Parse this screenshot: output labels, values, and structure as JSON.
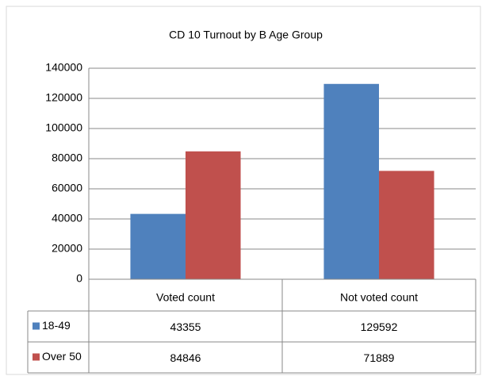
{
  "chart_data": {
    "type": "bar",
    "title": "CD 10 Turnout by B Age Group",
    "categories": [
      "Voted count",
      "Not voted count"
    ],
    "series": [
      {
        "name": "18-49",
        "color": "#4f81bd",
        "values": [
          43355,
          129592
        ]
      },
      {
        "name": "Over 50",
        "color": "#c0504d",
        "values": [
          84846,
          71889
        ]
      }
    ],
    "ylim": [
      0,
      140000
    ],
    "yticks": [
      0,
      20000,
      40000,
      60000,
      80000,
      100000,
      120000,
      140000
    ],
    "grid": true,
    "legend": "data-table"
  }
}
